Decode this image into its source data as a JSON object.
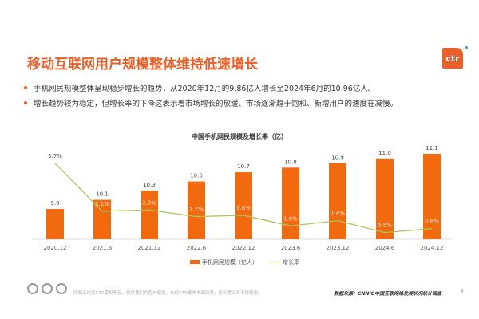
{
  "header": {
    "title": "移动互联网用户规模整体维持低速增长",
    "logo_text": "ctr"
  },
  "bullets": [
    "手机网民规模整体呈现稳步增长的趋势，从2020年12月的9.86亿人增长至2024年6月的10.96亿人。",
    "增长趋势较为稳定，但增长率的下降这表示着市场增长的放缓、市场逐渐趋于饱和、新增用户的速度在减慢。"
  ],
  "chart_data": {
    "type": "bar+line",
    "title": "中国手机网民规模及增长率（亿）",
    "categories": [
      "2020.12",
      "2021.6",
      "2021.12",
      "2022.6",
      "2022.12",
      "2023.6",
      "2023.12",
      "2024.6",
      "2024.12"
    ],
    "series": [
      {
        "name": "手机网民规模（亿人）",
        "type": "bar",
        "color": "#F26A10",
        "values": [
          9.9,
          10.1,
          10.3,
          10.5,
          10.7,
          10.8,
          10.9,
          11.0,
          11.1
        ],
        "labels": [
          "9.9",
          "10.1",
          "10.3",
          "10.5",
          "10.7",
          "10.8",
          "10.9",
          "11.0",
          "11.1"
        ]
      },
      {
        "name": "增长率",
        "type": "line",
        "color": "#A8C65A",
        "values": [
          5.7,
          2.1,
          2.2,
          1.7,
          1.8,
          1.0,
          1.4,
          0.5,
          0.8
        ],
        "labels": [
          "5.7%",
          "2.1%",
          "2.2%",
          "1.7%",
          "1.8%",
          "1.0%",
          "1.4%",
          "0.5%",
          "0.8%"
        ]
      }
    ],
    "legend": "bottom",
    "grid": false
  },
  "footer": {
    "disclaimer": "所展示内容CTR版权所有，仅供我们的客户使用，未经CTR事先书面同意，任何第三方不得使用。",
    "source": "数据来源：CNNIC中国互联网络发展状况统计调查",
    "page": "4"
  }
}
